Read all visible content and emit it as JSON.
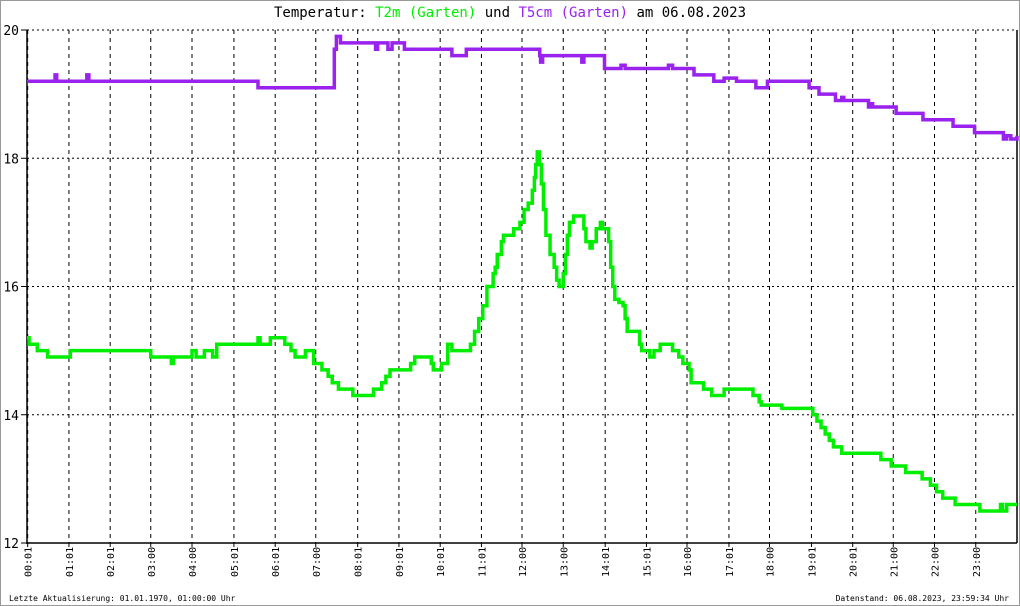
{
  "title": {
    "prefix": "Temperatur: ",
    "series1": "T2m (Garten)",
    "middle": " und ",
    "series2": "T5cm (Garten)",
    "suffix": " am 06.08.2023"
  },
  "footer": {
    "last_update": "Letzte Aktualisierung: 01.01.1970, 01:00:00 Uhr",
    "data_status": "Datenstand: 06.08.2023, 23:59:34 Uhr"
  },
  "chart_data": {
    "type": "line",
    "title": "Temperatur: T2m (Garten) und T5cm (Garten) am 06.08.2023",
    "xlabel": "",
    "ylabel": "",
    "xlim_hours": [
      0,
      24
    ],
    "ylim": [
      12,
      20
    ],
    "y_ticks": [
      "20",
      "18",
      "16",
      "14",
      "12"
    ],
    "x_ticks": [
      "00:01",
      "01:01",
      "02:01",
      "03:00",
      "04:00",
      "05:01",
      "06:01",
      "07:00",
      "08:01",
      "09:01",
      "10:01",
      "11:01",
      "12:00",
      "13:00",
      "14:01",
      "15:01",
      "16:00",
      "17:01",
      "18:00",
      "19:01",
      "20:01",
      "21:00",
      "22:00",
      "23:00"
    ],
    "grid": true,
    "legend": "title",
    "series": [
      {
        "name": "T2m (Garten)",
        "color": "#00ee00",
        "points_hour_value": [
          [
            0,
            15.2
          ],
          [
            0.05,
            15.1
          ],
          [
            0.25,
            15.0
          ],
          [
            0.5,
            14.9
          ],
          [
            1.05,
            15.0
          ],
          [
            3.0,
            14.9
          ],
          [
            3.5,
            14.8
          ],
          [
            3.55,
            14.9
          ],
          [
            4.0,
            15.0
          ],
          [
            4.1,
            14.9
          ],
          [
            4.3,
            15.0
          ],
          [
            4.5,
            14.9
          ],
          [
            4.6,
            15.1
          ],
          [
            5.6,
            15.2
          ],
          [
            5.65,
            15.1
          ],
          [
            5.9,
            15.2
          ],
          [
            6.2,
            15.2
          ],
          [
            6.25,
            15.1
          ],
          [
            6.4,
            15.0
          ],
          [
            6.5,
            14.9
          ],
          [
            6.75,
            15.0
          ],
          [
            6.95,
            14.8
          ],
          [
            7.15,
            14.7
          ],
          [
            7.3,
            14.6
          ],
          [
            7.4,
            14.5
          ],
          [
            7.55,
            14.4
          ],
          [
            7.9,
            14.3
          ],
          [
            8.4,
            14.4
          ],
          [
            8.6,
            14.5
          ],
          [
            8.7,
            14.6
          ],
          [
            8.8,
            14.7
          ],
          [
            9.3,
            14.8
          ],
          [
            9.4,
            14.9
          ],
          [
            9.8,
            14.8
          ],
          [
            9.85,
            14.7
          ],
          [
            10.05,
            14.8
          ],
          [
            10.2,
            15.1
          ],
          [
            10.3,
            15.0
          ],
          [
            10.75,
            15.1
          ],
          [
            10.85,
            15.3
          ],
          [
            10.95,
            15.5
          ],
          [
            11.05,
            15.7
          ],
          [
            11.15,
            16.0
          ],
          [
            11.3,
            16.2
          ],
          [
            11.35,
            16.3
          ],
          [
            11.4,
            16.5
          ],
          [
            11.5,
            16.7
          ],
          [
            11.55,
            16.8
          ],
          [
            11.8,
            16.9
          ],
          [
            11.95,
            17.0
          ],
          [
            12.05,
            17.2
          ],
          [
            12.15,
            17.3
          ],
          [
            12.25,
            17.5
          ],
          [
            12.3,
            17.7
          ],
          [
            12.33,
            17.9
          ],
          [
            12.37,
            18.1
          ],
          [
            12.42,
            17.9
          ],
          [
            12.47,
            17.6
          ],
          [
            12.52,
            17.2
          ],
          [
            12.58,
            16.8
          ],
          [
            12.68,
            16.5
          ],
          [
            12.78,
            16.3
          ],
          [
            12.84,
            16.1
          ],
          [
            12.9,
            16.0
          ],
          [
            13.0,
            16.2
          ],
          [
            13.05,
            16.5
          ],
          [
            13.1,
            16.8
          ],
          [
            13.15,
            17.0
          ],
          [
            13.25,
            17.1
          ],
          [
            13.45,
            17.1
          ],
          [
            13.5,
            16.9
          ],
          [
            13.55,
            16.7
          ],
          [
            13.65,
            16.6
          ],
          [
            13.7,
            16.7
          ],
          [
            13.8,
            16.9
          ],
          [
            13.9,
            17.0
          ],
          [
            13.95,
            16.9
          ],
          [
            14.05,
            16.9
          ],
          [
            14.1,
            16.7
          ],
          [
            14.15,
            16.3
          ],
          [
            14.2,
            16.0
          ],
          [
            14.25,
            15.8
          ],
          [
            14.35,
            15.75
          ],
          [
            14.45,
            15.7
          ],
          [
            14.5,
            15.5
          ],
          [
            14.55,
            15.3
          ],
          [
            14.75,
            15.3
          ],
          [
            14.85,
            15.1
          ],
          [
            14.9,
            15.0
          ],
          [
            15.1,
            14.9
          ],
          [
            15.2,
            15.0
          ],
          [
            15.35,
            15.1
          ],
          [
            15.6,
            15.1
          ],
          [
            15.65,
            15.0
          ],
          [
            15.8,
            14.9
          ],
          [
            15.9,
            14.8
          ],
          [
            16.05,
            14.7
          ],
          [
            16.1,
            14.5
          ],
          [
            16.4,
            14.4
          ],
          [
            16.6,
            14.3
          ],
          [
            16.9,
            14.4
          ],
          [
            17.55,
            14.4
          ],
          [
            17.6,
            14.3
          ],
          [
            17.75,
            14.2
          ],
          [
            17.8,
            14.15
          ],
          [
            18.3,
            14.1
          ],
          [
            19.0,
            14.1
          ],
          [
            19.05,
            14.0
          ],
          [
            19.15,
            13.9
          ],
          [
            19.25,
            13.8
          ],
          [
            19.35,
            13.7
          ],
          [
            19.45,
            13.6
          ],
          [
            19.55,
            13.5
          ],
          [
            19.75,
            13.4
          ],
          [
            20.65,
            13.4
          ],
          [
            20.7,
            13.3
          ],
          [
            20.95,
            13.2
          ],
          [
            21.3,
            13.1
          ],
          [
            21.7,
            13.0
          ],
          [
            21.9,
            12.9
          ],
          [
            22.05,
            12.8
          ],
          [
            22.2,
            12.7
          ],
          [
            22.5,
            12.6
          ],
          [
            23.05,
            12.6
          ],
          [
            23.1,
            12.5
          ],
          [
            23.55,
            12.5
          ],
          [
            23.6,
            12.6
          ],
          [
            23.65,
            12.5
          ],
          [
            23.75,
            12.6
          ],
          [
            24.0,
            12.6
          ]
        ]
      },
      {
        "name": "T5cm (Garten)",
        "color": "#9a22ee",
        "points_hour_value": [
          [
            0,
            19.2
          ],
          [
            0.68,
            19.3
          ],
          [
            0.72,
            19.2
          ],
          [
            1.45,
            19.3
          ],
          [
            1.5,
            19.2
          ],
          [
            5.6,
            19.1
          ],
          [
            7.45,
            19.7
          ],
          [
            7.5,
            19.9
          ],
          [
            7.6,
            19.8
          ],
          [
            8.45,
            19.7
          ],
          [
            8.5,
            19.8
          ],
          [
            8.75,
            19.7
          ],
          [
            8.85,
            19.8
          ],
          [
            9.15,
            19.7
          ],
          [
            10.3,
            19.6
          ],
          [
            10.65,
            19.7
          ],
          [
            12.43,
            19.6
          ],
          [
            12.45,
            19.5
          ],
          [
            12.5,
            19.6
          ],
          [
            13.45,
            19.5
          ],
          [
            13.5,
            19.6
          ],
          [
            14.0,
            19.4
          ],
          [
            14.4,
            19.45
          ],
          [
            14.5,
            19.4
          ],
          [
            15.55,
            19.45
          ],
          [
            15.65,
            19.4
          ],
          [
            16.17,
            19.3
          ],
          [
            16.65,
            19.2
          ],
          [
            16.9,
            19.25
          ],
          [
            17.2,
            19.2
          ],
          [
            17.67,
            19.1
          ],
          [
            17.95,
            19.2
          ],
          [
            18.96,
            19.1
          ],
          [
            19.2,
            19.0
          ],
          [
            19.6,
            18.9
          ],
          [
            19.75,
            18.95
          ],
          [
            19.8,
            18.9
          ],
          [
            20.4,
            18.8
          ],
          [
            20.45,
            18.85
          ],
          [
            20.5,
            18.8
          ],
          [
            21.07,
            18.7
          ],
          [
            21.72,
            18.6
          ],
          [
            22.45,
            18.5
          ],
          [
            22.97,
            18.4
          ],
          [
            23.67,
            18.3
          ],
          [
            23.75,
            18.35
          ],
          [
            23.85,
            18.3
          ],
          [
            24.0,
            18.35
          ]
        ]
      }
    ]
  }
}
